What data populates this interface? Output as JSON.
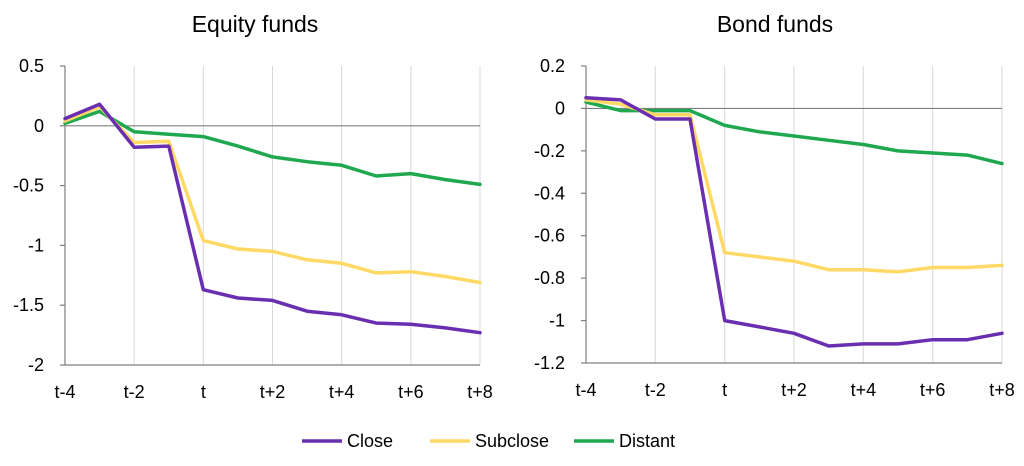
{
  "chart_data": [
    {
      "type": "line",
      "title": "Equity funds",
      "categories": [
        "t-4",
        "t-3",
        "t-2",
        "t-1",
        "t",
        "t+1",
        "t+2",
        "t+3",
        "t+4",
        "t+5",
        "t+6",
        "t+7",
        "t+8"
      ],
      "x_tick_labels": [
        "t-4",
        "t-2",
        "t",
        "t+2",
        "t+4",
        "t+6",
        "t+8"
      ],
      "y_ticks": [
        "0.5",
        "0",
        "-0.5",
        "-1",
        "-1.5",
        "-2"
      ],
      "ylim": [
        -2,
        0.5
      ],
      "grid": "vertical",
      "series": [
        {
          "name": "Close",
          "values": [
            0.06,
            0.18,
            -0.18,
            -0.17,
            -1.37,
            -1.44,
            -1.46,
            -1.55,
            -1.58,
            -1.65,
            -1.66,
            -1.69,
            -1.73
          ]
        },
        {
          "name": "Subclose",
          "values": [
            0.04,
            0.16,
            -0.14,
            -0.13,
            -0.96,
            -1.03,
            -1.05,
            -1.12,
            -1.15,
            -1.23,
            -1.22,
            -1.26,
            -1.31
          ]
        },
        {
          "name": "Distant",
          "values": [
            0.02,
            0.12,
            -0.05,
            -0.07,
            -0.09,
            -0.17,
            -0.26,
            -0.3,
            -0.33,
            -0.42,
            -0.4,
            -0.45,
            -0.49
          ]
        }
      ]
    },
    {
      "type": "line",
      "title": "Bond funds",
      "categories": [
        "t-4",
        "t-3",
        "t-2",
        "t-1",
        "t",
        "t+1",
        "t+2",
        "t+3",
        "t+4",
        "t+5",
        "t+6",
        "t+7",
        "t+8"
      ],
      "x_tick_labels": [
        "t-4",
        "t-2",
        "t",
        "t+2",
        "t+4",
        "t+6",
        "t+8"
      ],
      "y_ticks": [
        "0.2",
        "0",
        "-0.2",
        "-0.4",
        "-0.6",
        "-0.8",
        "-1",
        "-1.2"
      ],
      "ylim": [
        -1.2,
        0.2
      ],
      "grid": "vertical",
      "series": [
        {
          "name": "Close",
          "values": [
            0.05,
            0.04,
            -0.05,
            -0.05,
            -1.0,
            -1.03,
            -1.06,
            -1.12,
            -1.11,
            -1.11,
            -1.09,
            -1.09,
            -1.06
          ]
        },
        {
          "name": "Subclose",
          "values": [
            0.04,
            0.02,
            -0.03,
            -0.03,
            -0.68,
            -0.7,
            -0.72,
            -0.76,
            -0.76,
            -0.77,
            -0.75,
            -0.75,
            -0.74
          ]
        },
        {
          "name": "Distant",
          "values": [
            0.03,
            -0.01,
            -0.01,
            -0.01,
            -0.08,
            -0.11,
            -0.13,
            -0.15,
            -0.17,
            -0.2,
            -0.21,
            -0.22,
            -0.26
          ]
        }
      ]
    }
  ],
  "legend": {
    "position": "bottom",
    "items": [
      {
        "label": "Close",
        "color": "#6a2fb0"
      },
      {
        "label": "Subclose",
        "color": "#ffd966"
      },
      {
        "label": "Distant",
        "color": "#1fa84f"
      }
    ]
  },
  "colors": {
    "Close": "#6a2fb0",
    "Subclose": "#ffd966",
    "Distant": "#1fa84f",
    "grid": "#d9d9d9",
    "axis": "#7f7f7f"
  }
}
